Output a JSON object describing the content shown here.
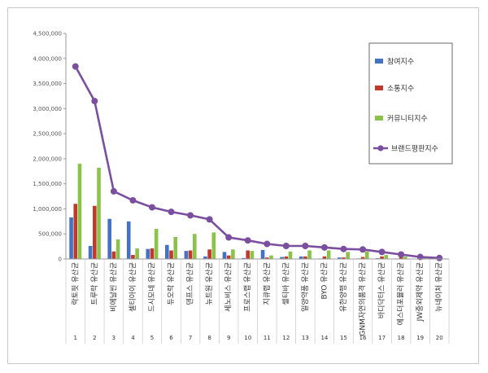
{
  "chart_data": {
    "type": "bar",
    "title": "",
    "xlabel": "",
    "ylabel": "",
    "ylim": [
      0,
      4500000
    ],
    "yticks": [
      "0",
      "500,000",
      "1,000,000",
      "1,500,000",
      "2,000,000",
      "2,500,000",
      "3,000,000",
      "3,500,000",
      "4,000,000",
      "4,500,000"
    ],
    "grid": false,
    "legend_position": "right",
    "categories": [
      "락토핏 유산균",
      "트루락 유산균",
      "비에날씬 유산균",
      "셀티아이 유산균",
      "드시모네 유산균",
      "듀오락 유산균",
      "덴프스 유산균",
      "뉴트원 유산균",
      "세노비스 유산균",
      "프로스랩 유산균",
      "지큐랩 유산균",
      "셀티바 유산균",
      "일양약품 유산균",
      "BYO 유산균",
      "유한양행 유산균",
      "GNM자연의품격 유산균",
      "바디닥터스 유산균",
      "에스더포뮬러 유산균",
      "JW중외제약 유산균",
      "뉴네이처 유산균"
    ],
    "category_numbers": [
      "1",
      "2",
      "3",
      "4",
      "5",
      "6",
      "7",
      "8",
      "9",
      "10",
      "11",
      "12",
      "13",
      "14",
      "15",
      "16",
      "17",
      "18",
      "19",
      "20"
    ],
    "series": [
      {
        "name": "참여지수",
        "kind": "bar",
        "color": "#4472c4",
        "values": [
          830000,
          260000,
          800000,
          750000,
          200000,
          280000,
          160000,
          50000,
          140000,
          20000,
          180000,
          40000,
          50000,
          10000,
          30000,
          10000,
          15000,
          10000,
          5000,
          5000
        ]
      },
      {
        "name": "소통지수",
        "kind": "bar",
        "color": "#c0392b",
        "values": [
          1100000,
          1060000,
          150000,
          80000,
          210000,
          170000,
          170000,
          190000,
          70000,
          170000,
          30000,
          50000,
          50000,
          50000,
          30000,
          40000,
          50000,
          40000,
          5000,
          5000
        ]
      },
      {
        "name": "커뮤니티지수",
        "kind": "bar",
        "color": "#8bc34a",
        "values": [
          1900000,
          1820000,
          390000,
          210000,
          600000,
          440000,
          500000,
          530000,
          190000,
          160000,
          70000,
          150000,
          170000,
          170000,
          140000,
          150000,
          80000,
          50000,
          20000,
          10000
        ]
      },
      {
        "name": "브랜드평판지수",
        "kind": "line",
        "color": "#7b4fa0",
        "values": [
          3840000,
          3150000,
          1350000,
          1170000,
          1030000,
          940000,
          870000,
          790000,
          430000,
          370000,
          300000,
          260000,
          260000,
          230000,
          200000,
          190000,
          140000,
          90000,
          40000,
          20000
        ]
      }
    ]
  }
}
